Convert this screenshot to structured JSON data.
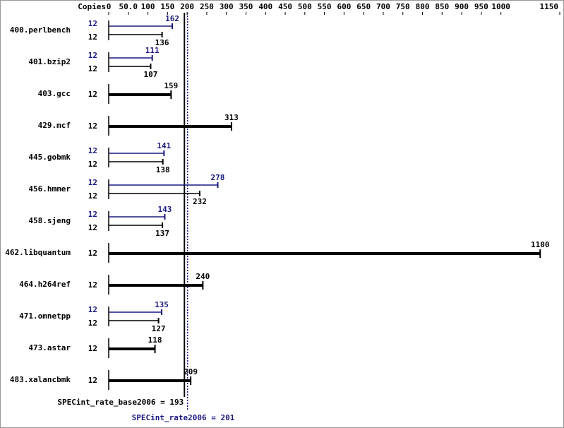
{
  "chart_data": {
    "type": "bar",
    "orientation": "horizontal",
    "axis_label": "Copies",
    "categories": [
      "400.perlbench",
      "401.bzip2",
      "403.gcc",
      "429.mcf",
      "445.gobmk",
      "456.hmmer",
      "458.sjeng",
      "462.libquantum",
      "464.h264ref",
      "471.omnetpp",
      "473.astar",
      "483.xalancbmk"
    ],
    "series": [
      {
        "color": "#191980",
        "copies": [
          12,
          12,
          null,
          null,
          12,
          12,
          12,
          null,
          null,
          12,
          null,
          null
        ],
        "values": [
          162,
          111,
          null,
          null,
          141,
          278,
          143,
          null,
          null,
          135,
          null,
          null
        ]
      },
      {
        "color": "#000000",
        "copies": [
          12,
          12,
          12,
          12,
          12,
          12,
          12,
          12,
          12,
          12,
          12,
          12
        ],
        "values": [
          136,
          107,
          159,
          313,
          138,
          232,
          137,
          1100,
          240,
          127,
          118,
          209
        ]
      }
    ],
    "xlim": [
      0,
      1150
    ],
    "xticks": [
      0,
      {
        "value": 50,
        "label": "50.0"
      },
      100,
      150,
      200,
      250,
      300,
      350,
      400,
      450,
      500,
      550,
      600,
      650,
      700,
      750,
      800,
      850,
      900,
      950,
      1000,
      1150
    ],
    "references": [
      {
        "label": "SPECint_rate_base2006 = 193",
        "value": 193,
        "color": "#000000",
        "style": "solid"
      },
      {
        "label": "SPECint_rate2006 = 201",
        "value": 201,
        "color": "#191980",
        "style": "dotted"
      }
    ]
  }
}
